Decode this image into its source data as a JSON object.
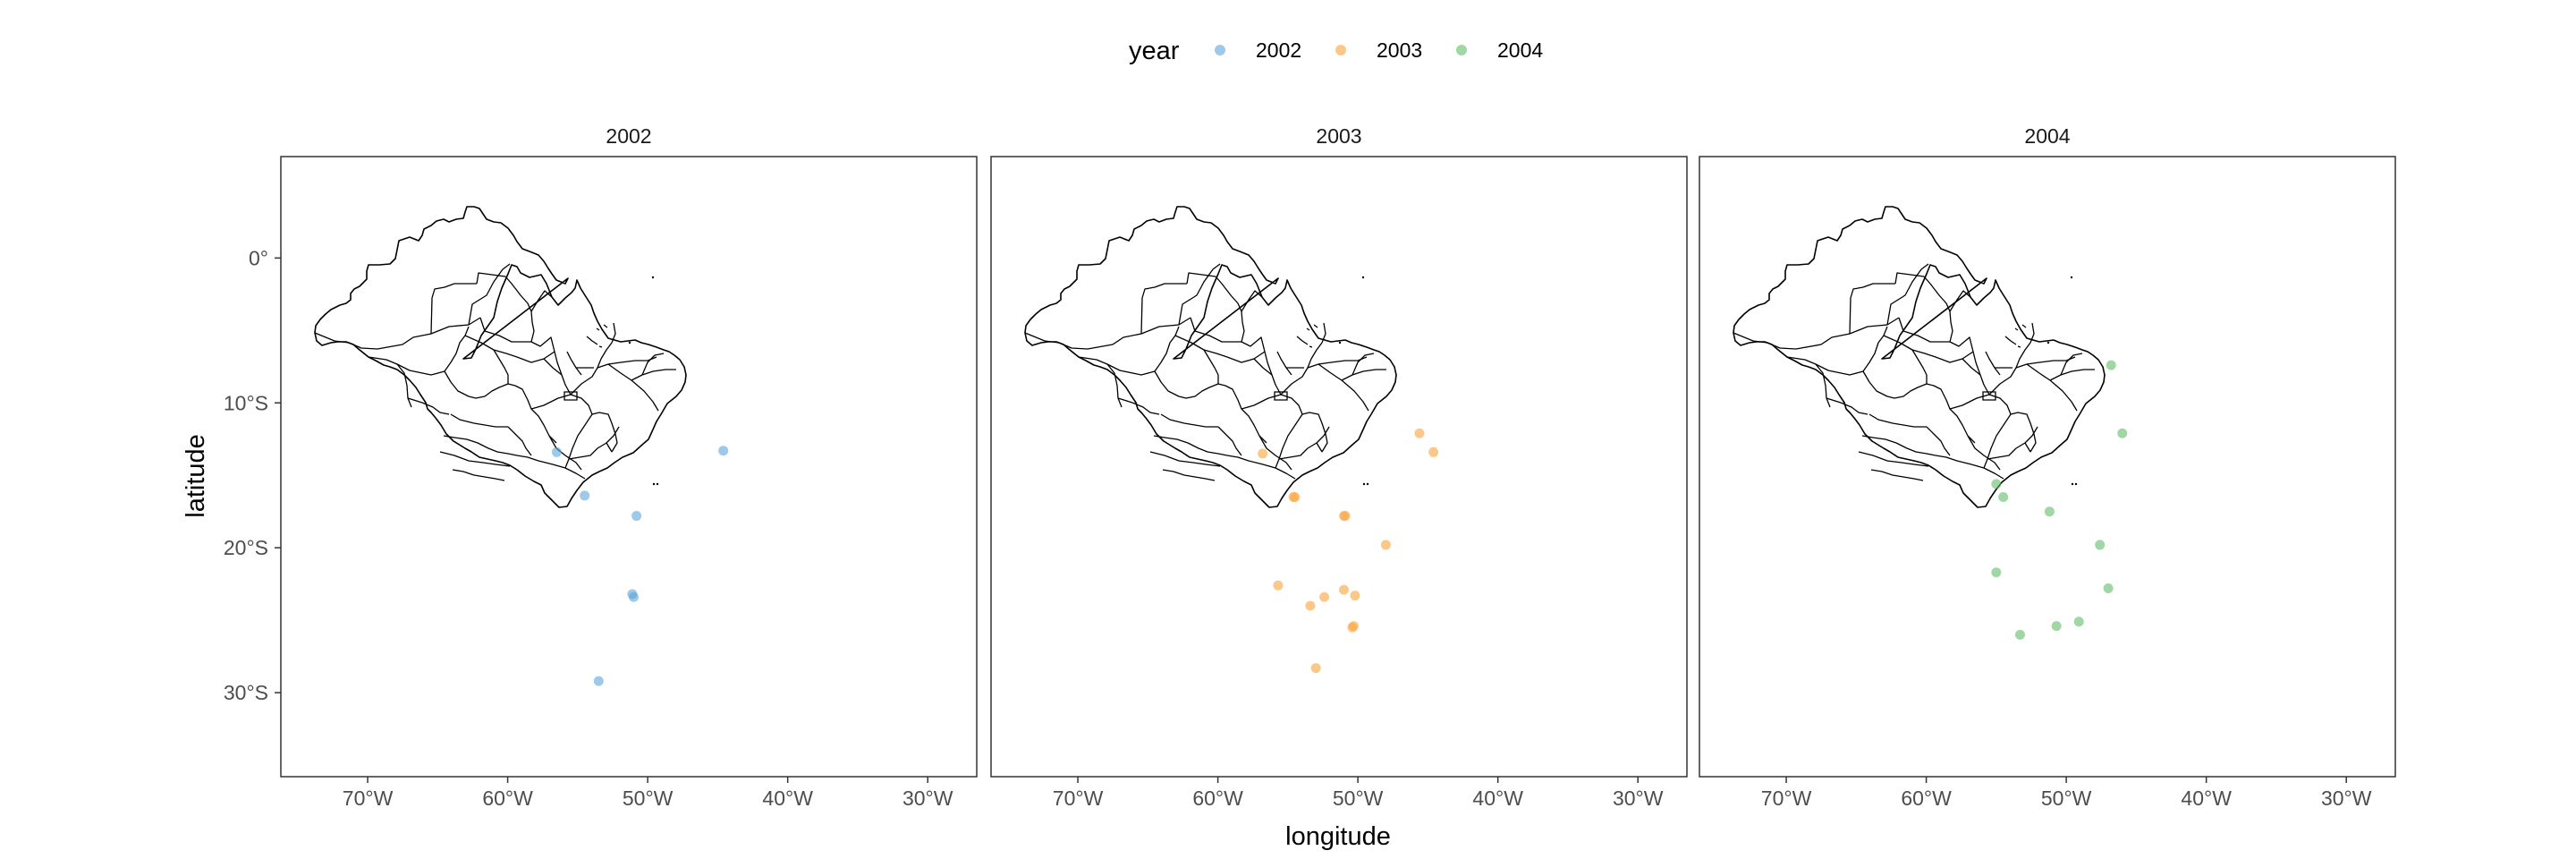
{
  "legend": {
    "title": "year",
    "items": [
      {
        "label": "2002",
        "color": "#5DA5DA"
      },
      {
        "label": "2003",
        "color": "#FAA43A"
      },
      {
        "label": "2004",
        "color": "#60BD68"
      }
    ]
  },
  "axes": {
    "xlabel": "longitude",
    "ylabel": "latitude",
    "x_ticks": [
      {
        "value": -70,
        "label": "70°W"
      },
      {
        "value": -60,
        "label": "60°W"
      },
      {
        "value": -50,
        "label": "50°W"
      },
      {
        "value": -40,
        "label": "40°W"
      },
      {
        "value": -30,
        "label": "30°W"
      }
    ],
    "y_ticks": [
      {
        "value": 0,
        "label": "0°"
      },
      {
        "value": -10,
        "label": "10°S"
      },
      {
        "value": -20,
        "label": "20°S"
      },
      {
        "value": -30,
        "label": "30°S"
      }
    ]
  },
  "panels": [
    {
      "title": "2002"
    },
    {
      "title": "2003"
    },
    {
      "title": "2004"
    }
  ],
  "chart_data": {
    "type": "scatter",
    "map": "Brazil state boundaries",
    "xlim": [
      -76.2,
      -26.5
    ],
    "ylim": [
      -35.8,
      7.0
    ],
    "series": [
      {
        "name": "2002",
        "color": "#5DA5DA",
        "points": [
          {
            "x": -56.5,
            "y": -13.4
          },
          {
            "x": -44.6,
            "y": -13.3
          },
          {
            "x": -54.5,
            "y": -16.4
          },
          {
            "x": -50.8,
            "y": -17.8
          },
          {
            "x": -51.1,
            "y": -23.2
          },
          {
            "x": -51.0,
            "y": -23.4
          },
          {
            "x": -53.5,
            "y": -29.2
          }
        ]
      },
      {
        "name": "2003",
        "color": "#FAA43A",
        "points": [
          {
            "x": -56.8,
            "y": -13.5
          },
          {
            "x": -45.6,
            "y": -12.1
          },
          {
            "x": -44.6,
            "y": -13.4
          },
          {
            "x": -54.6,
            "y": -16.5
          },
          {
            "x": -54.5,
            "y": -16.5
          },
          {
            "x": -51.0,
            "y": -17.8
          },
          {
            "x": -50.9,
            "y": -17.8
          },
          {
            "x": -48.0,
            "y": -19.8
          },
          {
            "x": -55.7,
            "y": -22.6
          },
          {
            "x": -51.0,
            "y": -22.9
          },
          {
            "x": -50.2,
            "y": -23.3
          },
          {
            "x": -52.4,
            "y": -23.4
          },
          {
            "x": -53.4,
            "y": -24.0
          },
          {
            "x": -50.3,
            "y": -25.4
          },
          {
            "x": -50.4,
            "y": -25.5
          },
          {
            "x": -53.0,
            "y": -28.3
          }
        ]
      },
      {
        "name": "2004",
        "color": "#60BD68",
        "points": [
          {
            "x": -46.8,
            "y": -7.4
          },
          {
            "x": -46.0,
            "y": -12.1
          },
          {
            "x": -55.0,
            "y": -15.6
          },
          {
            "x": -54.5,
            "y": -16.5
          },
          {
            "x": -51.2,
            "y": -17.5
          },
          {
            "x": -47.6,
            "y": -19.8
          },
          {
            "x": -55.0,
            "y": -21.7
          },
          {
            "x": -47.0,
            "y": -22.8
          },
          {
            "x": -49.1,
            "y": -25.1
          },
          {
            "x": -50.7,
            "y": -25.4
          },
          {
            "x": -53.3,
            "y": -26.0
          }
        ]
      }
    ]
  }
}
